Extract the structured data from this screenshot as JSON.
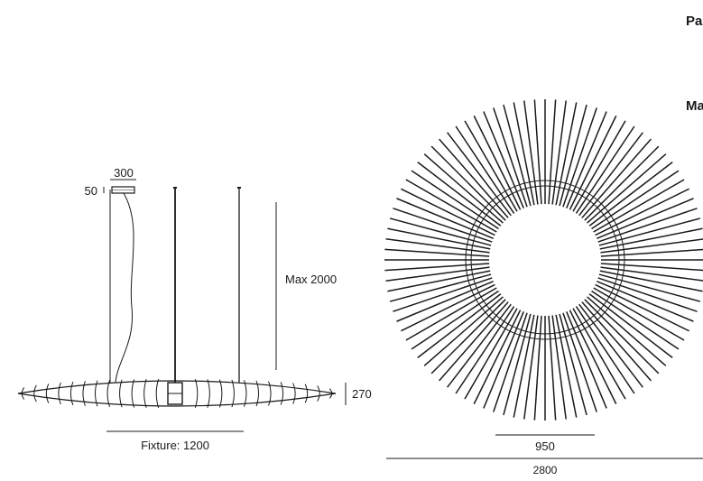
{
  "page": {
    "headings": [
      "Pa",
      "Ma"
    ]
  },
  "side_view": {
    "canopy_width": "300",
    "canopy_height": "50",
    "suspension_length": "Max 2000",
    "fixture_height": "270",
    "fixture_width": "Fixture: 1200"
  },
  "top_view": {
    "inner_diameter": "950",
    "outer_diameter": "2800",
    "ray_count": 96
  },
  "colors": {
    "line": "#1a1a1a",
    "background": "#ffffff"
  }
}
